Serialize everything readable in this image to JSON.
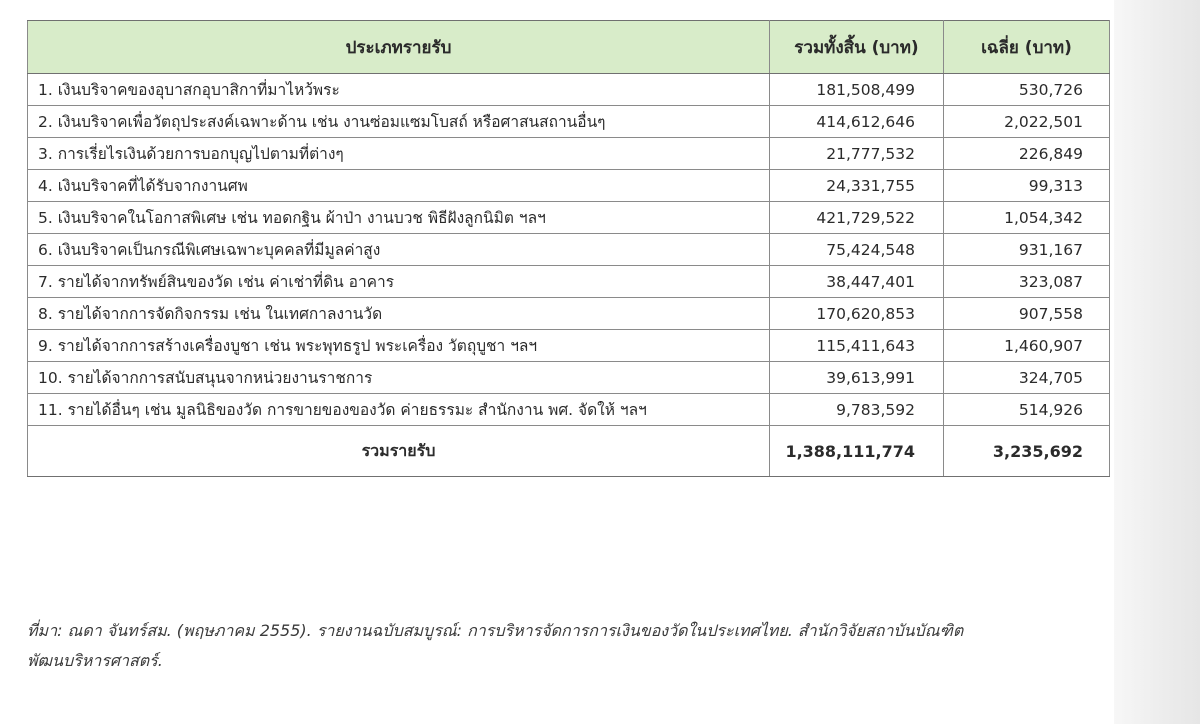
{
  "table": {
    "headers": {
      "type": "ประเภทรายรับ",
      "total": "รวมทั้งสิ้น (บาท)",
      "average": "เฉลี่ย (บาท)"
    },
    "rows": [
      {
        "label": "1.  เงินบริจาคของอุบาสกอุบาสิกาที่มาไหว้พระ",
        "total": "181,508,499",
        "average": "530,726"
      },
      {
        "label": "2.  เงินบริจาคเพื่อวัตถุประสงค์เฉพาะด้าน เช่น งานซ่อมแซมโบสถ์ หรือศาสนสถานอื่นๆ",
        "total": "414,612,646",
        "average": "2,022,501"
      },
      {
        "label": "3.  การเรี่ยไรเงินด้วยการบอกบุญไปตามที่ต่างๆ",
        "total": "21,777,532",
        "average": "226,849"
      },
      {
        "label": "4.  เงินบริจาคที่ได้รับจากงานศพ",
        "total": "24,331,755",
        "average": "99,313"
      },
      {
        "label": "5.  เงินบริจาคในโอกาสพิเศษ เช่น ทอดกฐิน ผ้าป่า งานบวช พิธีฝังลูกนิมิต ฯลฯ",
        "total": "421,729,522",
        "average": "1,054,342"
      },
      {
        "label": "6.  เงินบริจาคเป็นกรณีพิเศษเฉพาะบุคคลที่มีมูลค่าสูง",
        "total": "75,424,548",
        "average": "931,167"
      },
      {
        "label": "7.  รายได้จากทรัพย์สินของวัด เช่น ค่าเช่าที่ดิน อาคาร",
        "total": "38,447,401",
        "average": "323,087"
      },
      {
        "label": "8.  รายได้จากการจัดกิจกรรม เช่น ในเทศกาลงานวัด",
        "total": "170,620,853",
        "average": "907,558"
      },
      {
        "label": "9.  รายได้จากการสร้างเครื่องบูชา เช่น พระพุทธรูป พระเครื่อง วัตถุบูชา ฯลฯ",
        "total": "115,411,643",
        "average": "1,460,907"
      },
      {
        "label": "10. รายได้จากการสนับสนุนจากหน่วยงานราชการ",
        "total": "39,613,991",
        "average": "324,705"
      },
      {
        "label": "11. รายได้อื่นๆ เช่น มูลนิธิของวัด การขายของของวัด ค่ายธรรมะ สำนักงาน พศ. จัดให้ ฯลฯ",
        "total": "9,783,592",
        "average": "514,926"
      }
    ],
    "summary": {
      "label": "รวมรายรับ",
      "total": "1,388,111,774",
      "average": "3,235,692"
    }
  },
  "source": {
    "line1": "ที่มา: ณดา จันทร์สม. (พฤษภาคม 2555). รายงานฉบับสมบูรณ์: การบริหารจัดการการเงินของวัดในประเทศไทย. สำนักวิจัยสถาบันบัณฑิต",
    "line2": "พัฒนบริหารศาสตร์."
  },
  "colors": {
    "header_background": "#d8ecc9",
    "border": "#8a8a8a"
  }
}
